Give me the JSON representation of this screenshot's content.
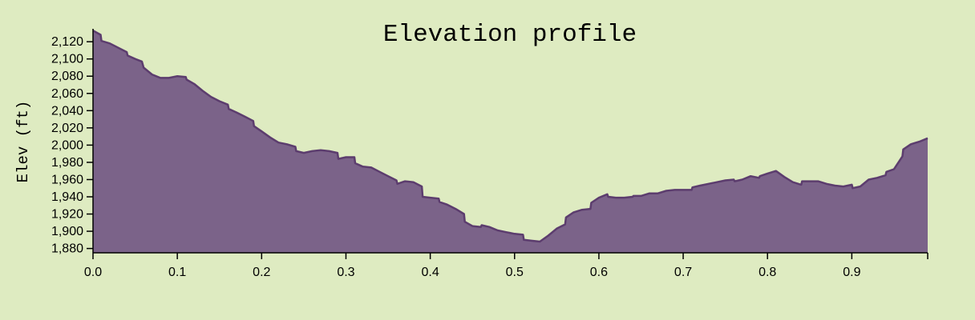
{
  "colors": {
    "background": "#deebc1",
    "area_fill": "#7b6389",
    "area_stroke": "#5c3d6e",
    "axis": "#000000"
  },
  "chart_data": {
    "type": "area",
    "title": "Elevation profile",
    "xlabel": "",
    "ylabel": "Elev (ft)",
    "xlim": [
      0,
      0.99
    ],
    "ylim": [
      1875,
      2135
    ],
    "grid": false,
    "x_ticks": [
      0.0,
      0.1,
      0.2,
      0.3,
      0.4,
      0.5,
      0.6,
      0.7,
      0.8,
      0.9
    ],
    "x_tick_labels": [
      "0.0",
      "0.1",
      "0.2",
      "0.3",
      "0.4",
      "0.5",
      "0.6",
      "0.7",
      "0.8",
      "0.9"
    ],
    "y_ticks": [
      1880,
      1900,
      1920,
      1940,
      1960,
      1980,
      2000,
      2020,
      2040,
      2060,
      2080,
      2100,
      2120
    ],
    "y_tick_labels": [
      "1,880",
      "1,900",
      "1,920",
      "1,940",
      "1,960",
      "1,980",
      "2,000",
      "2,020",
      "2,040",
      "2,060",
      "2,080",
      "2,100",
      "2,120"
    ],
    "series": [
      {
        "points": [
          [
            0.0,
            2133
          ],
          [
            0.009,
            2128
          ],
          [
            0.01,
            2121
          ],
          [
            0.02,
            2118
          ],
          [
            0.03,
            2113
          ],
          [
            0.04,
            2108
          ],
          [
            0.041,
            2104
          ],
          [
            0.05,
            2100
          ],
          [
            0.058,
            2097
          ],
          [
            0.06,
            2090
          ],
          [
            0.07,
            2082
          ],
          [
            0.08,
            2078
          ],
          [
            0.09,
            2078
          ],
          [
            0.1,
            2080
          ],
          [
            0.11,
            2079
          ],
          [
            0.111,
            2076
          ],
          [
            0.12,
            2071
          ],
          [
            0.13,
            2063
          ],
          [
            0.14,
            2056
          ],
          [
            0.15,
            2051
          ],
          [
            0.16,
            2047
          ],
          [
            0.161,
            2042
          ],
          [
            0.17,
            2038
          ],
          [
            0.18,
            2033
          ],
          [
            0.19,
            2028
          ],
          [
            0.191,
            2022
          ],
          [
            0.2,
            2016
          ],
          [
            0.21,
            2009
          ],
          [
            0.22,
            2003
          ],
          [
            0.23,
            2001
          ],
          [
            0.24,
            1998
          ],
          [
            0.241,
            1993
          ],
          [
            0.25,
            1991
          ],
          [
            0.26,
            1993
          ],
          [
            0.27,
            1994
          ],
          [
            0.28,
            1993
          ],
          [
            0.29,
            1991
          ],
          [
            0.291,
            1984
          ],
          [
            0.3,
            1986
          ],
          [
            0.31,
            1986
          ],
          [
            0.311,
            1979
          ],
          [
            0.32,
            1975
          ],
          [
            0.33,
            1974
          ],
          [
            0.34,
            1969
          ],
          [
            0.35,
            1964
          ],
          [
            0.36,
            1959
          ],
          [
            0.361,
            1955
          ],
          [
            0.37,
            1958
          ],
          [
            0.38,
            1957
          ],
          [
            0.39,
            1952
          ],
          [
            0.391,
            1940
          ],
          [
            0.4,
            1939
          ],
          [
            0.41,
            1938
          ],
          [
            0.411,
            1934
          ],
          [
            0.42,
            1931
          ],
          [
            0.43,
            1926
          ],
          [
            0.44,
            1920
          ],
          [
            0.441,
            1911
          ],
          [
            0.45,
            1906
          ],
          [
            0.46,
            1905
          ],
          [
            0.461,
            1907
          ],
          [
            0.47,
            1905
          ],
          [
            0.48,
            1901
          ],
          [
            0.49,
            1899
          ],
          [
            0.5,
            1897
          ],
          [
            0.51,
            1896
          ],
          [
            0.511,
            1890
          ],
          [
            0.52,
            1889
          ],
          [
            0.53,
            1888
          ],
          [
            0.54,
            1895
          ],
          [
            0.55,
            1903
          ],
          [
            0.56,
            1908
          ],
          [
            0.561,
            1916
          ],
          [
            0.57,
            1922
          ],
          [
            0.58,
            1925
          ],
          [
            0.59,
            1926
          ],
          [
            0.591,
            1933
          ],
          [
            0.6,
            1939
          ],
          [
            0.61,
            1943
          ],
          [
            0.611,
            1940
          ],
          [
            0.62,
            1939
          ],
          [
            0.63,
            1939
          ],
          [
            0.64,
            1940
          ],
          [
            0.641,
            1941
          ],
          [
            0.65,
            1941
          ],
          [
            0.66,
            1944
          ],
          [
            0.67,
            1944
          ],
          [
            0.68,
            1947
          ],
          [
            0.69,
            1948
          ],
          [
            0.7,
            1948
          ],
          [
            0.71,
            1948
          ],
          [
            0.711,
            1951
          ],
          [
            0.72,
            1953
          ],
          [
            0.73,
            1955
          ],
          [
            0.74,
            1957
          ],
          [
            0.75,
            1959
          ],
          [
            0.76,
            1960
          ],
          [
            0.761,
            1958
          ],
          [
            0.77,
            1960
          ],
          [
            0.78,
            1964
          ],
          [
            0.79,
            1962
          ],
          [
            0.791,
            1964
          ],
          [
            0.8,
            1967
          ],
          [
            0.81,
            1970
          ],
          [
            0.82,
            1963
          ],
          [
            0.83,
            1957
          ],
          [
            0.84,
            1954
          ],
          [
            0.841,
            1958
          ],
          [
            0.85,
            1958
          ],
          [
            0.86,
            1958
          ],
          [
            0.87,
            1955
          ],
          [
            0.88,
            1953
          ],
          [
            0.89,
            1952
          ],
          [
            0.9,
            1954
          ],
          [
            0.901,
            1950
          ],
          [
            0.91,
            1952
          ],
          [
            0.92,
            1960
          ],
          [
            0.93,
            1962
          ],
          [
            0.94,
            1965
          ],
          [
            0.941,
            1969
          ],
          [
            0.95,
            1972
          ],
          [
            0.96,
            1987
          ],
          [
            0.961,
            1995
          ],
          [
            0.97,
            2001
          ],
          [
            0.98,
            2004
          ],
          [
            0.99,
            2008
          ]
        ]
      }
    ]
  }
}
